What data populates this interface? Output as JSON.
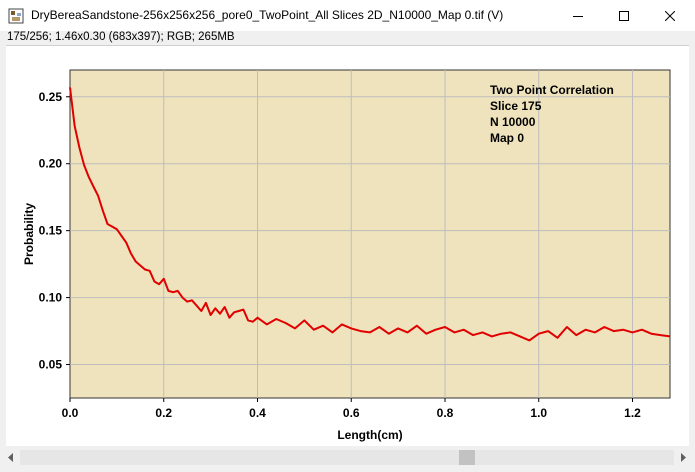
{
  "window": {
    "title": "DryBereaSandstone-256x256x256_pore0_TwoPoint_All Slices 2D_N10000_Map 0.tif (V)",
    "icon": "imagej-document-icon",
    "controls": {
      "minimize": "minimize-icon",
      "maximize": "maximize-icon",
      "close": "close-icon"
    }
  },
  "info_line": "175/256; 1.46x0.30   (683x397); RGB; 265MB",
  "plot": {
    "legend_lines": [
      "Two Point Correlation",
      "Slice 175",
      "N 10000",
      "Map 0"
    ],
    "colors": {
      "plot_bg": "#efe3bd",
      "line": "#e00000",
      "grid": "#bdbdbd"
    }
  },
  "chart_data": {
    "type": "line",
    "xlabel": "Length(cm)",
    "ylabel": "Probability",
    "xlim": [
      0.0,
      1.28
    ],
    "ylim": [
      0.025,
      0.27
    ],
    "xticks": [
      0.0,
      0.2,
      0.4,
      0.6,
      0.8,
      1.0,
      1.2
    ],
    "xtick_labels": [
      "0.0",
      "0.2",
      "0.4",
      "0.6",
      "0.8",
      "1.0",
      "1.2"
    ],
    "yticks": [
      0.05,
      0.1,
      0.15,
      0.2,
      0.25
    ],
    "ytick_labels": [
      "0.05",
      "0.10",
      "0.15",
      "0.20",
      "0.25"
    ],
    "grid": true,
    "series": [
      {
        "x": [
          0.0,
          0.01,
          0.02,
          0.03,
          0.04,
          0.05,
          0.06,
          0.07,
          0.08,
          0.09,
          0.1,
          0.11,
          0.12,
          0.13,
          0.14,
          0.15,
          0.16,
          0.17,
          0.18,
          0.19,
          0.2,
          0.21,
          0.22,
          0.23,
          0.24,
          0.25,
          0.26,
          0.27,
          0.28,
          0.29,
          0.3,
          0.31,
          0.32,
          0.33,
          0.34,
          0.35,
          0.36,
          0.37,
          0.38,
          0.39,
          0.4,
          0.42,
          0.44,
          0.46,
          0.48,
          0.5,
          0.52,
          0.54,
          0.56,
          0.58,
          0.6,
          0.62,
          0.64,
          0.66,
          0.68,
          0.7,
          0.72,
          0.74,
          0.76,
          0.78,
          0.8,
          0.82,
          0.84,
          0.86,
          0.88,
          0.9,
          0.92,
          0.94,
          0.96,
          0.98,
          1.0,
          1.02,
          1.04,
          1.06,
          1.08,
          1.1,
          1.12,
          1.14,
          1.16,
          1.18,
          1.2,
          1.22,
          1.24,
          1.26,
          1.28
        ],
        "y": [
          0.257,
          0.228,
          0.212,
          0.199,
          0.19,
          0.183,
          0.176,
          0.165,
          0.155,
          0.153,
          0.151,
          0.146,
          0.141,
          0.133,
          0.127,
          0.124,
          0.121,
          0.12,
          0.112,
          0.11,
          0.114,
          0.105,
          0.104,
          0.105,
          0.1,
          0.097,
          0.098,
          0.094,
          0.09,
          0.096,
          0.087,
          0.092,
          0.088,
          0.093,
          0.085,
          0.089,
          0.09,
          0.091,
          0.083,
          0.082,
          0.085,
          0.08,
          0.084,
          0.081,
          0.077,
          0.083,
          0.076,
          0.079,
          0.074,
          0.08,
          0.077,
          0.075,
          0.074,
          0.078,
          0.073,
          0.077,
          0.074,
          0.079,
          0.073,
          0.076,
          0.078,
          0.074,
          0.076,
          0.072,
          0.074,
          0.071,
          0.073,
          0.074,
          0.071,
          0.068,
          0.073,
          0.075,
          0.07,
          0.078,
          0.072,
          0.076,
          0.074,
          0.078,
          0.075,
          0.076,
          0.074,
          0.076,
          0.073,
          0.072,
          0.071
        ]
      }
    ]
  },
  "scrollbar": {
    "left_arrow": "arrow-left-icon",
    "right_arrow": "arrow-right-icon"
  }
}
